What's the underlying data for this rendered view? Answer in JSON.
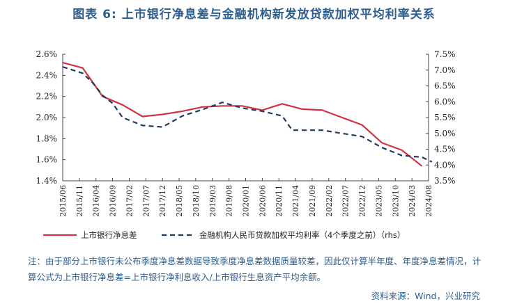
{
  "title": "图表 6:  上市银行净息差与金融机构新发放贷款加权平均利率关系",
  "note": "注：由于部分上市银行未公布季度净息差数据导致季度净息差数据质量较差，因此仅计算半年度、年度净息差情况，计算公式为上市银行净息差=上市银行净利息收入/上市银行生息资产平均余额。",
  "source": "资料来源：Wind，兴业研究",
  "colors": {
    "nim": "#CC3344",
    "rate": "#1F3A5F"
  },
  "chart_data": {
    "type": "line",
    "categories": [
      "2015/06",
      "2015/11",
      "2016/04",
      "2016/09",
      "2017/02",
      "2017/07",
      "2017/12",
      "2018/05",
      "2018/10",
      "2019/03",
      "2019/08",
      "2020/01",
      "2020/06",
      "2020/11",
      "2021/04",
      "2021/09",
      "2022/02",
      "2022/07",
      "2022/12",
      "2023/05",
      "2023/10",
      "2024/03",
      "2024/08"
    ],
    "y_left": {
      "range": [
        1.4,
        2.6
      ],
      "ticks": [
        "1.4%",
        "1.6%",
        "1.8%",
        "2.0%",
        "2.2%",
        "2.4%",
        "2.6%"
      ]
    },
    "y_right": {
      "range": [
        3.5,
        7.5
      ],
      "ticks": [
        "3.5%",
        "4.0%",
        "4.5%",
        "5.0%",
        "5.5%",
        "6.0%",
        "6.5%",
        "7.0%",
        "7.5%"
      ]
    },
    "series": [
      {
        "name": "上市银行净息差",
        "axis": "left",
        "style": "solid",
        "points": [
          [
            "2015/06",
            2.52
          ],
          [
            "2015/12",
            2.47
          ],
          [
            "2016/06",
            2.2
          ],
          [
            "2016/12",
            2.12
          ],
          [
            "2017/06",
            2.01
          ],
          [
            "2017/12",
            2.03
          ],
          [
            "2018/06",
            2.06
          ],
          [
            "2018/12",
            2.1
          ],
          [
            "2019/06",
            2.11
          ],
          [
            "2019/12",
            2.11
          ],
          [
            "2020/06",
            2.07
          ],
          [
            "2020/12",
            2.13
          ],
          [
            "2021/06",
            2.08
          ],
          [
            "2021/12",
            2.07
          ],
          [
            "2022/06",
            2.0
          ],
          [
            "2022/12",
            1.93
          ],
          [
            "2023/06",
            1.76
          ],
          [
            "2023/12",
            1.69
          ],
          [
            "2024/06",
            1.54
          ]
        ]
      },
      {
        "name": "金融机构人民币贷款加权平均利率（4个季度之前）（rhs）",
        "axis": "right",
        "style": "dashed",
        "points": [
          [
            "2015/06",
            7.1
          ],
          [
            "2015/12",
            6.9
          ],
          [
            "2016/03",
            6.6
          ],
          [
            "2016/06",
            6.2
          ],
          [
            "2016/09",
            5.95
          ],
          [
            "2016/12",
            5.5
          ],
          [
            "2017/06",
            5.25
          ],
          [
            "2017/12",
            5.2
          ],
          [
            "2018/06",
            5.55
          ],
          [
            "2018/12",
            5.75
          ],
          [
            "2019/06",
            5.98
          ],
          [
            "2019/12",
            5.8
          ],
          [
            "2020/06",
            5.7
          ],
          [
            "2020/12",
            5.55
          ],
          [
            "2021/03",
            5.1
          ],
          [
            "2021/12",
            5.1
          ],
          [
            "2022/06",
            5.0
          ],
          [
            "2022/12",
            4.9
          ],
          [
            "2023/06",
            4.55
          ],
          [
            "2023/12",
            4.3
          ],
          [
            "2024/06",
            4.25
          ],
          [
            "2024/09",
            4.1
          ]
        ]
      }
    ]
  }
}
